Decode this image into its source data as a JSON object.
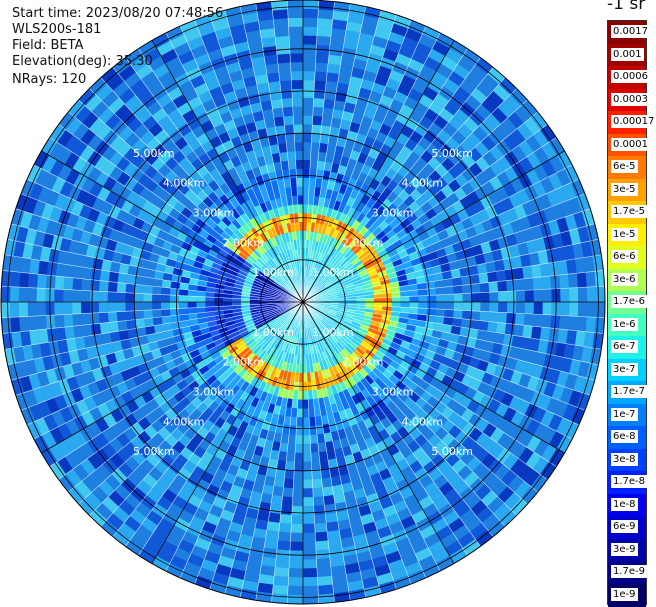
{
  "header": {
    "start_time": "Start time: 2023/08/20 07:48:56",
    "instrument": "WLS200s-181",
    "field": "Field: BETA",
    "elevation": "Elevation(deg): 35.30",
    "nrays": "NRays: 120"
  },
  "colorbar": {
    "unit_label": "-1 sr",
    "ticks": [
      "0.0017",
      "0.001",
      "0.0006",
      "0.0003",
      "0.00017",
      "0.0001",
      "6e-5",
      "3e-5",
      "1.7e-5",
      "1e-5",
      "6e-6",
      "3e-6",
      "1.7e-6",
      "1e-6",
      "6e-7",
      "3e-7",
      "1.7e-7",
      "1e-7",
      "6e-8",
      "3e-8",
      "1.7e-8",
      "1e-8",
      "6e-9",
      "3e-9",
      "1.7e-9",
      "1e-9"
    ],
    "colors": [
      "#8b0000",
      "#a00000",
      "#c00000",
      "#e00000",
      "#ff2000",
      "#ff5000",
      "#ff7a00",
      "#ffa000",
      "#ffc800",
      "#ffee00",
      "#e0ff20",
      "#b0ff50",
      "#70ff90",
      "#40ffc0",
      "#20f0e8",
      "#00d0ff",
      "#00a8ff",
      "#0080ff",
      "#0060ff",
      "#0040ff",
      "#0020ff",
      "#0000ee",
      "#0000cc",
      "#0000aa",
      "#000088",
      "#000066"
    ]
  },
  "range_rings": [
    "1.00km",
    "2.00km",
    "3.00km",
    "4.00km",
    "5.00km"
  ],
  "ppi": {
    "type": "ppi",
    "nrays": 120,
    "max_range_km": 5.9
  }
}
